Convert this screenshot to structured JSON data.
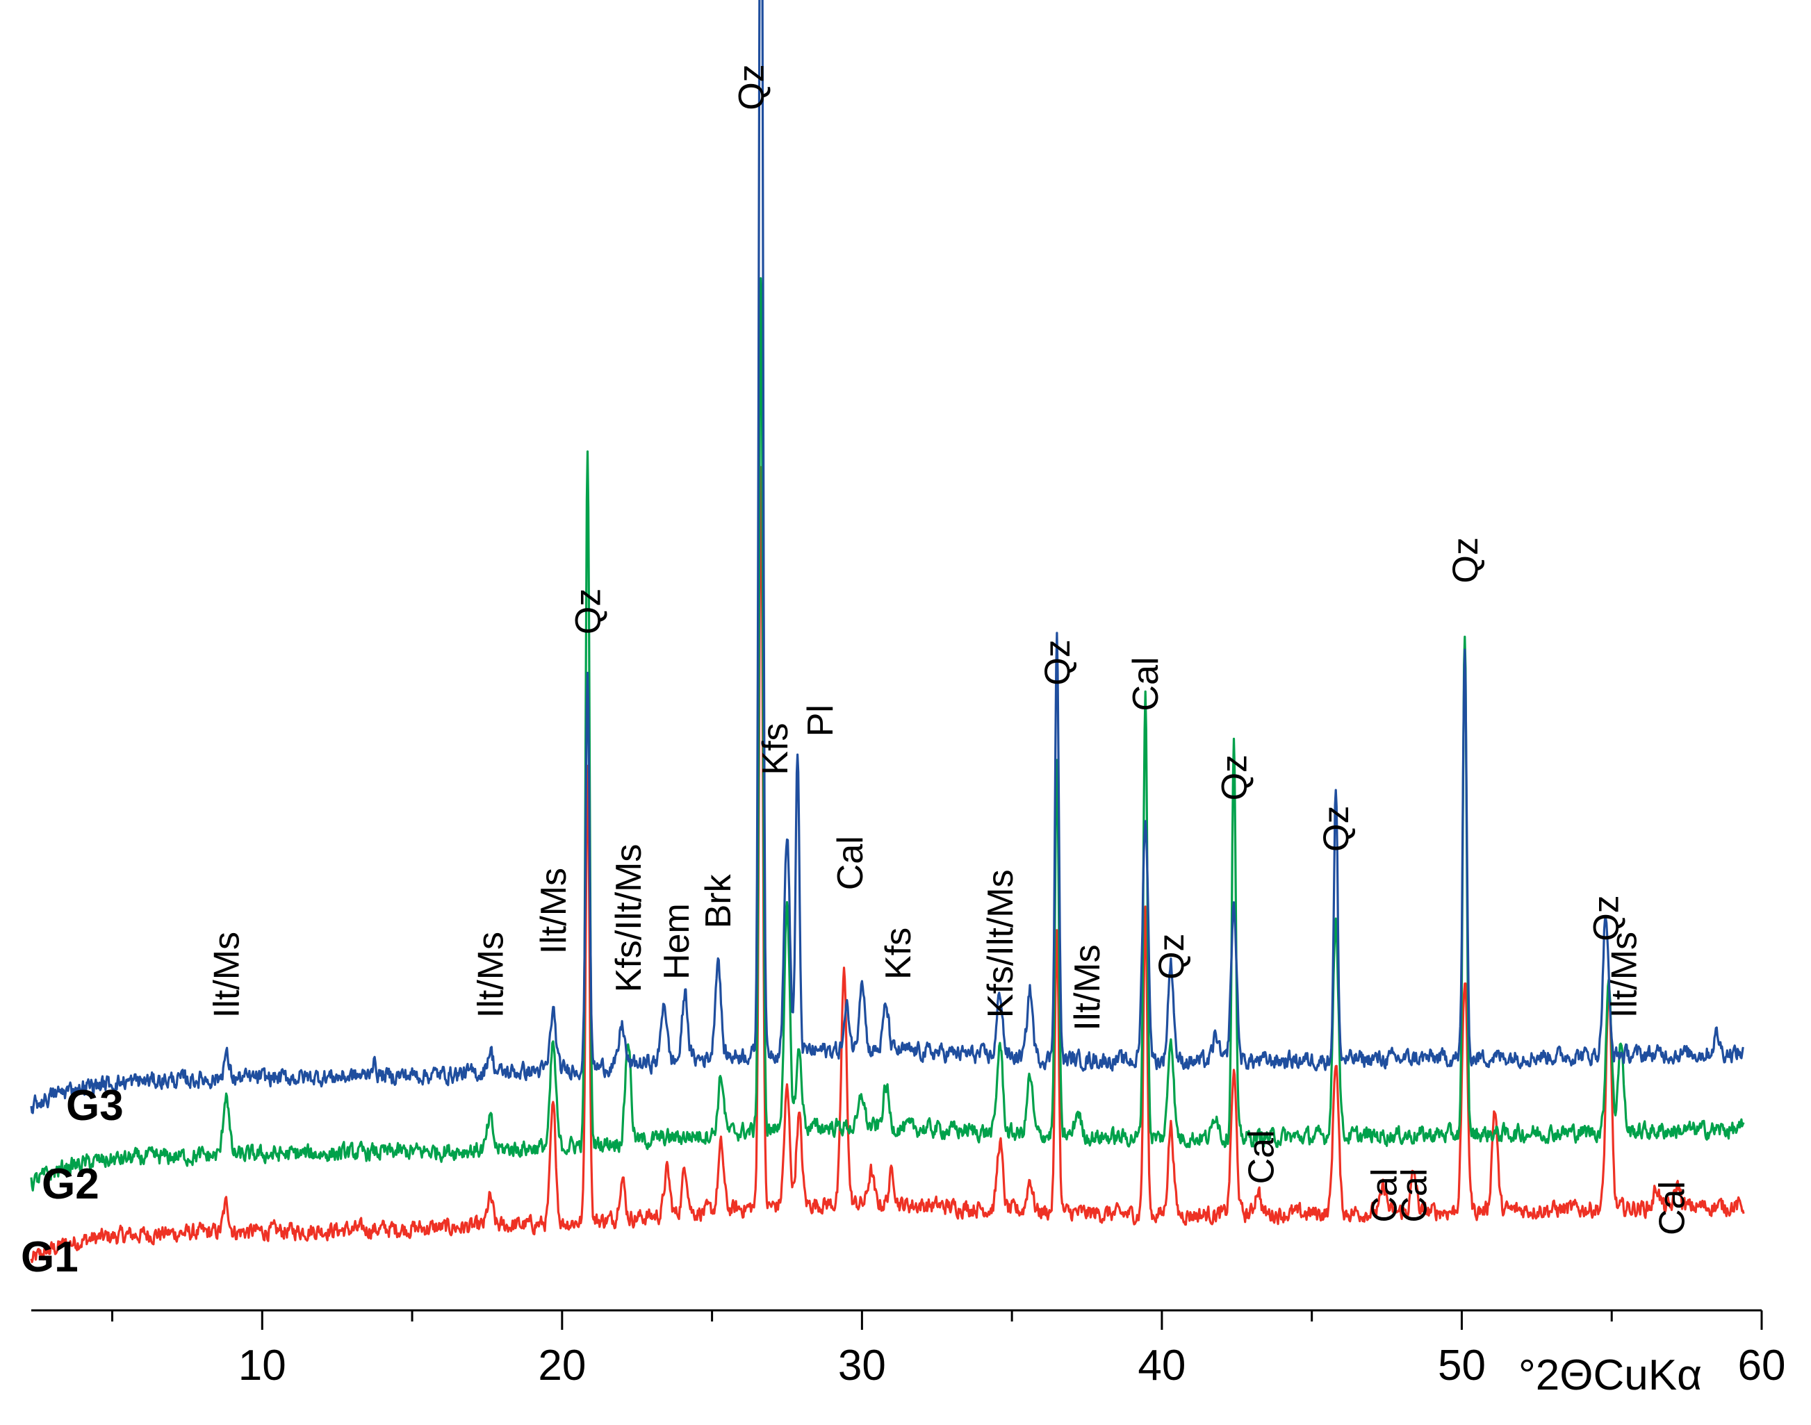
{
  "chart_data": {
    "type": "line",
    "title": "",
    "xlabel": "°2ΘCuKα",
    "ylabel": "",
    "xlim": [
      2.3,
      60
    ],
    "ylim": [
      0,
      100
    ],
    "grid": false,
    "ticks": [
      10,
      20,
      30,
      40,
      50,
      60
    ],
    "tick_labels": [
      "10",
      "20",
      "30",
      "40",
      "50",
      "60"
    ],
    "series": [
      {
        "name": "G1",
        "color": "#ee3124",
        "baseline": 3.0,
        "peaks": [
          [
            8.8,
            2.2
          ],
          [
            17.6,
            2.2
          ],
          [
            19.7,
            9
          ],
          [
            20.85,
            36
          ],
          [
            22.0,
            3.2
          ],
          [
            23.5,
            3.5
          ],
          [
            24.1,
            3.6
          ],
          [
            25.3,
            5
          ],
          [
            26.63,
            58
          ],
          [
            27.5,
            9
          ],
          [
            27.9,
            7
          ],
          [
            29.4,
            18
          ],
          [
            30.3,
            2.5
          ],
          [
            31.0,
            2.5
          ],
          [
            34.6,
            5.3
          ],
          [
            35.6,
            2.5
          ],
          [
            36.5,
            22
          ],
          [
            39.45,
            24
          ],
          [
            40.3,
            7
          ],
          [
            42.4,
            11
          ],
          [
            43.2,
            2
          ],
          [
            45.8,
            12
          ],
          [
            47.4,
            2
          ],
          [
            48.4,
            3
          ],
          [
            50.1,
            18
          ],
          [
            51.1,
            8
          ],
          [
            54.9,
            17
          ],
          [
            56.5,
            1.6
          ],
          [
            57.2,
            1.8
          ]
        ]
      },
      {
        "name": "G2",
        "color": "#00a14b",
        "baseline": 9.0,
        "peaks": [
          [
            8.8,
            5
          ],
          [
            17.6,
            2.3
          ],
          [
            19.7,
            8
          ],
          [
            20.85,
            54
          ],
          [
            22.2,
            8
          ],
          [
            25.3,
            4.5
          ],
          [
            26.63,
            67
          ],
          [
            27.5,
            17
          ],
          [
            27.9,
            6
          ],
          [
            30.0,
            2.5
          ],
          [
            30.8,
            3.2
          ],
          [
            34.6,
            7
          ],
          [
            35.6,
            4.5
          ],
          [
            36.5,
            29
          ],
          [
            37.2,
            2
          ],
          [
            39.45,
            35
          ],
          [
            40.3,
            8
          ],
          [
            41.8,
            2
          ],
          [
            42.4,
            31
          ],
          [
            45.8,
            17
          ],
          [
            50.1,
            39
          ],
          [
            54.9,
            12
          ],
          [
            55.3,
            7
          ]
        ]
      },
      {
        "name": "G3",
        "color": "#1f4e9e",
        "baseline": 15.0,
        "peaks": [
          [
            8.8,
            1.8
          ],
          [
            13.7,
            1
          ],
          [
            17.6,
            1.8
          ],
          [
            19.7,
            4.6
          ],
          [
            20.85,
            31
          ],
          [
            22.0,
            3.2
          ],
          [
            23.4,
            4.8
          ],
          [
            24.1,
            5.2
          ],
          [
            25.2,
            7.8
          ],
          [
            26.63,
            114
          ],
          [
            27.5,
            17
          ],
          [
            27.85,
            23
          ],
          [
            29.5,
            3.2
          ],
          [
            30.0,
            5.8
          ],
          [
            30.8,
            3.5
          ],
          [
            34.6,
            5
          ],
          [
            35.6,
            5.3
          ],
          [
            36.5,
            33
          ],
          [
            39.45,
            19
          ],
          [
            40.3,
            7.7
          ],
          [
            41.8,
            2
          ],
          [
            42.4,
            12
          ],
          [
            45.8,
            21
          ],
          [
            50.1,
            32
          ],
          [
            54.8,
            11
          ],
          [
            58.5,
            1.5
          ]
        ]
      }
    ],
    "peak_labels": [
      {
        "text": "Ilt/Ms",
        "x": 8.8,
        "y": 22
      },
      {
        "text": "Ilt/Ms",
        "x": 17.6,
        "y": 22
      },
      {
        "text": "Ilt/Ms",
        "x": 19.7,
        "y": 27
      },
      {
        "text": "Qz",
        "x": 20.85,
        "y": 52
      },
      {
        "text": "Kfs/Ilt/Ms",
        "x": 22.2,
        "y": 24
      },
      {
        "text": "Hem",
        "x": 23.8,
        "y": 25
      },
      {
        "text": "Brk",
        "x": 25.2,
        "y": 29
      },
      {
        "text": "Qz",
        "x": 26.3,
        "y": 93
      },
      {
        "text": "Kfs",
        "x": 27.1,
        "y": 41
      },
      {
        "text": "Pl",
        "x": 28.6,
        "y": 44
      },
      {
        "text": "Cal",
        "x": 29.6,
        "y": 32
      },
      {
        "text": "Kfs",
        "x": 31.2,
        "y": 25
      },
      {
        "text": "Kfs/Ilt/Ms",
        "x": 34.6,
        "y": 22
      },
      {
        "text": "Qz",
        "x": 36.5,
        "y": 48
      },
      {
        "text": "Ilt/Ms",
        "x": 37.5,
        "y": 21
      },
      {
        "text": "Cal",
        "x": 39.45,
        "y": 46
      },
      {
        "text": "Qz",
        "x": 40.3,
        "y": 25
      },
      {
        "text": "Qz",
        "x": 42.4,
        "y": 39
      },
      {
        "text": "Cal",
        "x": 43.3,
        "y": 9
      },
      {
        "text": "Qz",
        "x": 45.8,
        "y": 35
      },
      {
        "text": "Cal",
        "x": 47.4,
        "y": 6
      },
      {
        "text": "Cal",
        "x": 48.4,
        "y": 6
      },
      {
        "text": "Qz",
        "x": 50.1,
        "y": 56
      },
      {
        "text": "Qz",
        "x": 54.8,
        "y": 28
      },
      {
        "text": "Ilt/Ms",
        "x": 55.4,
        "y": 22
      },
      {
        "text": "Cal",
        "x": 57.0,
        "y": 5
      }
    ]
  }
}
